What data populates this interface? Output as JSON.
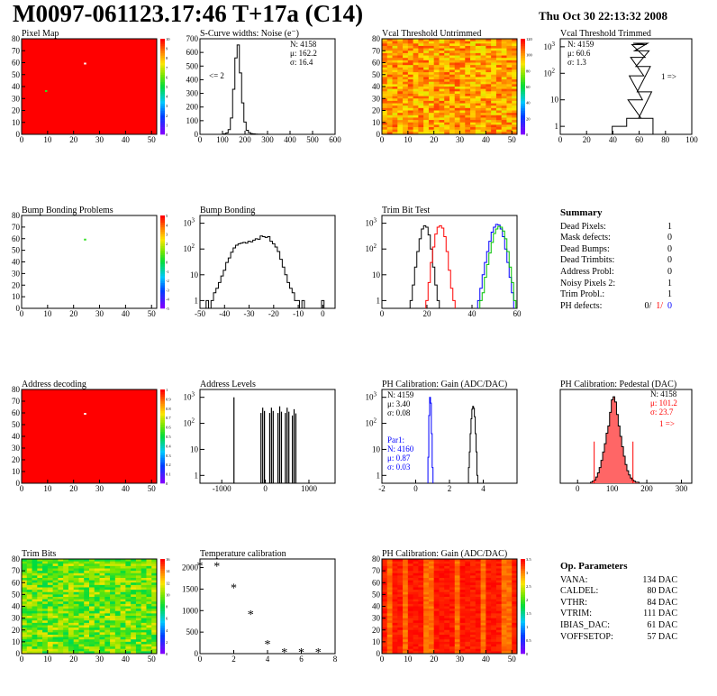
{
  "header": {
    "title": "M0097-061123.17:46 T+17a (C14)",
    "date": "Thu Oct 30 22:13:32 2008"
  },
  "colors": {
    "red": "#ff0000",
    "black": "#000000",
    "blue": "#0000ff",
    "green": "#00c000",
    "heat_orange": "#ff7a00",
    "hist_red_fill": "#ff6666"
  },
  "summary": {
    "title": "Summary",
    "rows": [
      {
        "label": "Dead Pixels:",
        "value": "1"
      },
      {
        "label": "Mask defects:",
        "value": "0"
      },
      {
        "label": "Dead Bumps:",
        "value": "0"
      },
      {
        "label": "Dead Trimbits:",
        "value": "0"
      },
      {
        "label": "Address Probl:",
        "value": "0"
      },
      {
        "label": "Noisy Pixels 2:",
        "value": "1"
      },
      {
        "label": "Trim Probl.:",
        "value": "1"
      }
    ],
    "ph_label": "PH defects:",
    "ph_values": [
      "0/",
      "1/",
      "0"
    ]
  },
  "op_params": {
    "title": "Op. Parameters",
    "rows": [
      {
        "label": "VANA:",
        "value": "134 DAC"
      },
      {
        "label": "CALDEL:",
        "value": "80 DAC"
      },
      {
        "label": "VTHR:",
        "value": "84 DAC"
      },
      {
        "label": "VTRIM:",
        "value": "111 DAC"
      },
      {
        "label": "IBIAS_DAC:",
        "value": "61 DAC"
      },
      {
        "label": "VOFFSETOP:",
        "value": "57 DAC"
      }
    ]
  },
  "chart_data": [
    {
      "id": "pixel_map",
      "type": "heatmap",
      "title": "Pixel Map",
      "xlim": [
        0,
        52
      ],
      "ylim": [
        0,
        80
      ],
      "xticks": [
        "0",
        "10",
        "20",
        "30",
        "40",
        "50"
      ],
      "yticks": [
        "0",
        "10",
        "20",
        "30",
        "40",
        "50",
        "60",
        "70",
        "80"
      ],
      "zticks": [
        "0",
        "1",
        "2",
        "3",
        "4",
        "5",
        "6",
        "7",
        "8",
        "9",
        "10"
      ],
      "fill": "uniform red (10 hits)",
      "outliers": [
        {
          "x": 24,
          "y": 59,
          "z": 0
        },
        {
          "x": 9,
          "y": 36,
          "z": 5
        }
      ]
    },
    {
      "id": "scurve",
      "type": "bar",
      "title": "S-Curve widths: Noise (e⁻)",
      "xlim": [
        0,
        600
      ],
      "ylim": [
        0,
        700
      ],
      "xticks": [
        "0",
        "100",
        "200",
        "300",
        "400",
        "500",
        "600"
      ],
      "yticks": [
        "0",
        "100",
        "200",
        "300",
        "400",
        "500",
        "600",
        "700"
      ],
      "stats": [
        "N: 4158",
        "μ: 162.2",
        "σ: 16.4"
      ],
      "annotation": "<= 2",
      "x": [
        110,
        120,
        130,
        140,
        150,
        160,
        170,
        180,
        190,
        200,
        210,
        220,
        230,
        240,
        250,
        260,
        270,
        280
      ],
      "values": [
        3,
        10,
        35,
        120,
        330,
        560,
        655,
        450,
        230,
        90,
        30,
        12,
        5,
        3,
        2,
        1,
        1,
        1
      ]
    },
    {
      "id": "vcal_untrimmed",
      "type": "heatmap",
      "title": "Vcal Threshold Untrimmed",
      "xlim": [
        0,
        52
      ],
      "ylim": [
        0,
        80
      ],
      "xticks": [
        "0",
        "10",
        "20",
        "30",
        "40",
        "50"
      ],
      "yticks": [
        "0",
        "10",
        "20",
        "30",
        "40",
        "50",
        "60",
        "70",
        "80"
      ],
      "zticks": [
        "0",
        "20",
        "40",
        "60",
        "80",
        "100",
        "120"
      ],
      "fill": "noisy orange/yellow (~60-110)"
    },
    {
      "id": "vcal_trimmed",
      "type": "bar",
      "title": "Vcal Threshold Trimmed",
      "xlim": [
        0,
        100
      ],
      "ylim": [
        0.5,
        2000
      ],
      "log_y": true,
      "xticks": [
        "0",
        "20",
        "40",
        "60",
        "80",
        "100"
      ],
      "stats": [
        "N: 4159",
        "μ: 60.6",
        "σ: 1.3"
      ],
      "annotation": "1 =>",
      "x": [
        45,
        56,
        57,
        58,
        59,
        60,
        61,
        62,
        63,
        64,
        65
      ],
      "values": [
        1,
        2,
        10,
        80,
        400,
        1200,
        1350,
        700,
        180,
        20,
        2
      ]
    },
    {
      "id": "bump_problems",
      "type": "heatmap",
      "title": "Bump Bonding Problems",
      "xlim": [
        0,
        52
      ],
      "ylim": [
        0,
        80
      ],
      "xticks": [
        "0",
        "10",
        "20",
        "30",
        "40",
        "50"
      ],
      "yticks": [
        "0",
        "10",
        "20",
        "30",
        "40",
        "50",
        "60",
        "70",
        "80"
      ],
      "zticks": [
        "-5",
        "-4",
        "-3",
        "-2",
        "-1",
        "0",
        "1",
        "2",
        "3",
        "4",
        "5"
      ],
      "fill": "empty",
      "outliers": [
        {
          "x": 24,
          "y": 59,
          "z": 1
        }
      ]
    },
    {
      "id": "bump_bonding",
      "type": "bar",
      "title": "Bump Bonding",
      "xlim": [
        -50,
        5
      ],
      "ylim": [
        0.5,
        2000
      ],
      "log_y": true,
      "xticks": [
        "-50",
        "-40",
        "-30",
        "-20",
        "-10",
        "0"
      ],
      "x": [
        -47,
        -46,
        -45,
        -44,
        -43,
        -42,
        -41,
        -40,
        -39,
        -38,
        -37,
        -36,
        -35,
        -34,
        -33,
        -32,
        -31,
        -30,
        -29,
        -28,
        -27,
        -26,
        -25,
        -24,
        -23,
        -22,
        -21,
        -20,
        -19,
        -18,
        -17,
        -16,
        -15,
        -14,
        -13,
        -12,
        -11,
        -10,
        -9,
        -8,
        -7,
        -6,
        -5,
        -4,
        -3,
        -2,
        -1,
        0,
        1,
        2
      ],
      "values": [
        1,
        0,
        1,
        2,
        3,
        5,
        9,
        15,
        30,
        45,
        75,
        110,
        140,
        160,
        170,
        180,
        170,
        200,
        190,
        220,
        250,
        240,
        320,
        300,
        280,
        300,
        200,
        160,
        120,
        80,
        40,
        20,
        10,
        5,
        3,
        2,
        1,
        1,
        0,
        1,
        0,
        0,
        0,
        0,
        0,
        0,
        0,
        1,
        0,
        0
      ]
    },
    {
      "id": "trim_bit_test",
      "type": "line",
      "title": "Trim Bit Test",
      "xlim": [
        0,
        60
      ],
      "ylim": [
        0.5,
        2000
      ],
      "log_y": true,
      "xticks": [
        "0",
        "20",
        "40",
        "60"
      ],
      "series": [
        {
          "color": "black",
          "x": [
            13,
            14,
            15,
            16,
            17,
            18,
            19,
            20,
            21,
            22,
            23,
            24,
            25
          ],
          "values": [
            1,
            4,
            20,
            80,
            250,
            600,
            800,
            700,
            350,
            100,
            20,
            4,
            1
          ]
        },
        {
          "color": "red",
          "x": [
            20,
            21,
            22,
            23,
            24,
            25,
            26,
            27,
            28,
            29,
            30,
            31,
            32
          ],
          "values": [
            1,
            5,
            30,
            120,
            380,
            700,
            800,
            650,
            300,
            80,
            15,
            3,
            1
          ]
        },
        {
          "color": "blue",
          "x": [
            43,
            44,
            45,
            46,
            47,
            48,
            49,
            50,
            51,
            52,
            53,
            54,
            55,
            56,
            57,
            58
          ],
          "values": [
            1,
            3,
            10,
            30,
            80,
            200,
            450,
            700,
            900,
            850,
            600,
            300,
            100,
            30,
            8,
            2
          ]
        },
        {
          "color": "green",
          "x": [
            44,
            45,
            46,
            47,
            48,
            49,
            50,
            51,
            52,
            53,
            54,
            55,
            56,
            57,
            58,
            59
          ],
          "values": [
            1,
            2,
            8,
            25,
            70,
            180,
            400,
            600,
            750,
            700,
            500,
            250,
            80,
            20,
            5,
            1
          ]
        }
      ]
    },
    {
      "id": "address_decoding",
      "type": "heatmap",
      "title": "Address decoding",
      "xlim": [
        0,
        52
      ],
      "ylim": [
        0,
        80
      ],
      "xticks": [
        "0",
        "10",
        "20",
        "30",
        "40",
        "50"
      ],
      "yticks": [
        "0",
        "10",
        "20",
        "30",
        "40",
        "50",
        "60",
        "70",
        "80"
      ],
      "zticks": [
        "0",
        "0.1",
        "0.2",
        "0.3",
        "0.4",
        "0.5",
        "0.6",
        "0.7",
        "0.8",
        "0.9",
        "1"
      ],
      "fill": "uniform red (1)",
      "outliers": [
        {
          "x": 24,
          "y": 59,
          "z": 0
        }
      ]
    },
    {
      "id": "address_levels",
      "type": "bar",
      "title": "Address Levels",
      "xlim": [
        -1500,
        1600
      ],
      "ylim": [
        0.5,
        2000
      ],
      "log_y": true,
      "xticks": [
        "-1000",
        "0",
        "1000"
      ],
      "x": [
        -720,
        -100,
        -60,
        -20,
        100,
        140,
        180,
        290,
        330,
        370,
        460,
        500,
        540,
        620,
        660,
        700
      ],
      "values": [
        1000,
        250,
        400,
        300,
        250,
        400,
        300,
        250,
        450,
        280,
        250,
        400,
        280,
        200,
        350,
        240
      ]
    },
    {
      "id": "ph_gain",
      "type": "bar",
      "title": "PH Calibration: Gain (ADC/DAC)",
      "xlim": [
        -2,
        6
      ],
      "ylim": [
        0.5,
        2000
      ],
      "log_y": true,
      "xticks": [
        "-2",
        "0",
        "2",
        "4"
      ],
      "stats": [
        "N: 4159",
        "μ: 3.40",
        "σ: 0.08"
      ],
      "par_stats": [
        "Par1:",
        "N: 4160",
        "μ: 0.87",
        "σ: 0.03"
      ],
      "series": [
        {
          "color": "black",
          "x": [
            3.15,
            3.2,
            3.25,
            3.3,
            3.35,
            3.4,
            3.45,
            3.5,
            3.55,
            3.6,
            3.65
          ],
          "values": [
            2,
            8,
            40,
            150,
            350,
            450,
            380,
            180,
            40,
            8,
            1
          ]
        },
        {
          "color": "blue",
          "x": [
            0.75,
            0.8,
            0.85,
            0.9,
            0.95,
            1.0
          ],
          "values": [
            5,
            200,
            1000,
            600,
            40,
            2
          ]
        }
      ]
    },
    {
      "id": "ph_pedestal",
      "type": "bar",
      "title": "PH Calibration: Pedestal (DAC)",
      "xlim": [
        -50,
        330
      ],
      "ylim": [
        0,
        90
      ],
      "xticks": [
        "0",
        "100",
        "200",
        "300"
      ],
      "stats": [
        "N: 4158",
        "μ: 101.2",
        "σ: 23.7"
      ],
      "annotation": "1 =>",
      "x": [
        40,
        45,
        50,
        55,
        60,
        65,
        70,
        75,
        80,
        85,
        90,
        95,
        100,
        105,
        110,
        115,
        120,
        125,
        130,
        135,
        140,
        145,
        150,
        155,
        160,
        165,
        170,
        175
      ],
      "values": [
        1,
        2,
        3,
        6,
        10,
        15,
        22,
        30,
        38,
        48,
        55,
        68,
        80,
        83,
        78,
        66,
        55,
        45,
        35,
        26,
        18,
        12,
        8,
        5,
        3,
        2,
        1,
        1
      ]
    },
    {
      "id": "trim_bits",
      "type": "heatmap",
      "title": "Trim Bits",
      "xlim": [
        0,
        52
      ],
      "ylim": [
        0,
        80
      ],
      "xticks": [
        "0",
        "10",
        "20",
        "30",
        "40",
        "50"
      ],
      "yticks": [
        "0",
        "10",
        "20",
        "30",
        "40",
        "50",
        "60",
        "70",
        "80"
      ],
      "zticks": [
        "0",
        "2",
        "4",
        "6",
        "8",
        "10",
        "12",
        "14",
        "16"
      ],
      "fill": "noisy green/yellow (~6-10)"
    },
    {
      "id": "temperature",
      "type": "scatter",
      "title": "Temperature calibration",
      "xlim": [
        0,
        8
      ],
      "ylim": [
        0,
        2200
      ],
      "xticks": [
        "0",
        "2",
        "4",
        "6",
        "8"
      ],
      "yticks": [
        "0",
        "500",
        "1000",
        "1500",
        "2000"
      ],
      "x": [
        0,
        1,
        2,
        3,
        4,
        5,
        6,
        7
      ],
      "values": [
        2030,
        2020,
        1520,
        900,
        210,
        25,
        20,
        20
      ]
    },
    {
      "id": "ph_gain_map",
      "type": "heatmap",
      "title": "PH Calibration: Gain (ADC/DAC)",
      "xlim": [
        0,
        52
      ],
      "ylim": [
        0,
        80
      ],
      "xticks": [
        "0",
        "10",
        "20",
        "30",
        "40",
        "50"
      ],
      "yticks": [
        "0",
        "10",
        "20",
        "30",
        "40",
        "50",
        "60",
        "70",
        "80"
      ],
      "zticks": [
        "0",
        "0.5",
        "1",
        "1.5",
        "2",
        "2.5",
        "3",
        "3.5"
      ],
      "fill": "red with orange vertical stripes"
    }
  ]
}
